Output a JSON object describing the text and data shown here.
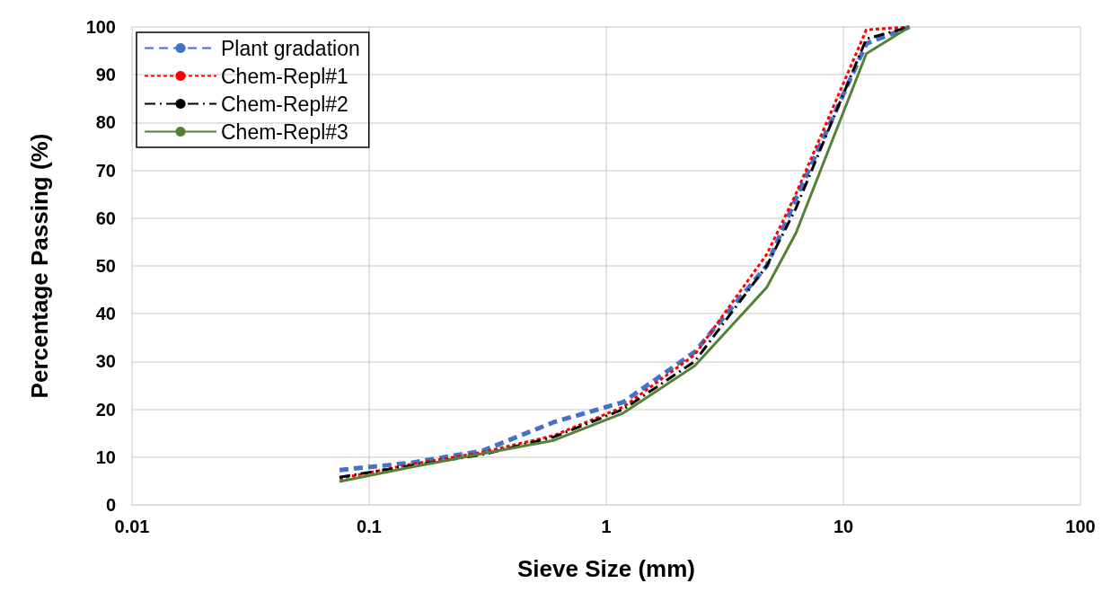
{
  "chart_data": {
    "type": "line",
    "xlabel": "Sieve Size (mm)",
    "ylabel": "Percentage Passing (%)",
    "x": [
      0.075,
      0.15,
      0.3,
      0.6,
      1.18,
      2.36,
      4.75,
      6.3,
      12.5,
      19
    ],
    "series": [
      {
        "name": "Plant gradation",
        "color": "#4472c4",
        "line_style": "dashed",
        "values": [
          7.3,
          8.8,
          11.3,
          17.3,
          21.5,
          32,
          50,
          64,
          96.5,
          100
        ]
      },
      {
        "name": "Chem-Repl#1",
        "color": "#ff0000",
        "line_style": "dotted",
        "values": [
          5.5,
          8.5,
          11,
          14.5,
          20.5,
          31.4,
          52.4,
          65,
          99.4,
          100
        ]
      },
      {
        "name": "Chem-Repl#2",
        "color": "#000000",
        "line_style": "dashdot",
        "values": [
          5.8,
          8.2,
          10.5,
          14.2,
          20,
          30,
          50,
          62,
          97.5,
          100
        ]
      },
      {
        "name": "Chem-Repl#3",
        "color": "#548235",
        "line_style": "solid",
        "values": [
          4.9,
          7.9,
          10.7,
          13.5,
          19.2,
          29.1,
          45.5,
          56.8,
          94.4,
          100
        ]
      }
    ],
    "log": "x",
    "xlim": [
      0.01,
      100
    ],
    "xticks": [
      0.01,
      0.1,
      1,
      10,
      100
    ],
    "ylim": [
      0,
      100
    ],
    "yticks": [
      0,
      10,
      20,
      30,
      40,
      50,
      60,
      70,
      80,
      90,
      100
    ],
    "grid": true,
    "legend": "top left",
    "marker": "none"
  }
}
